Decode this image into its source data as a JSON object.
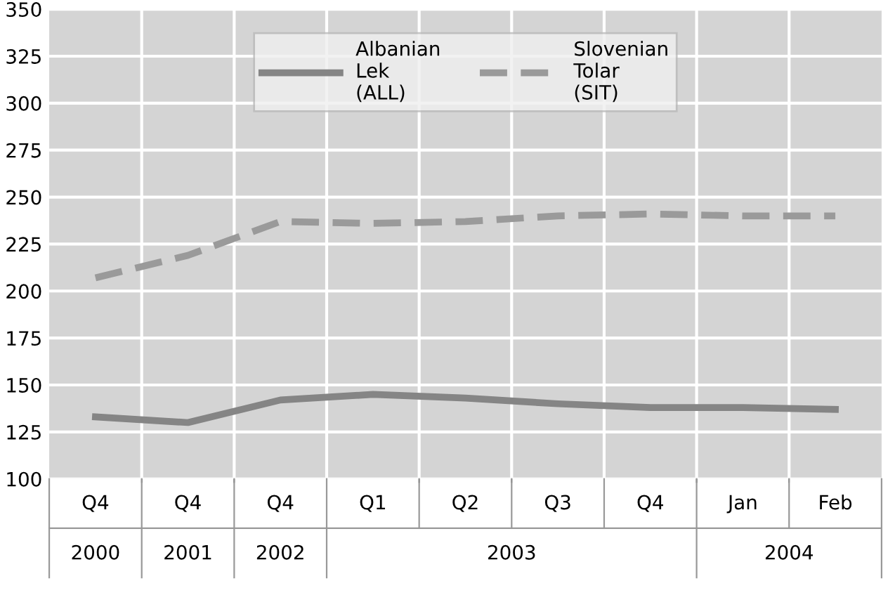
{
  "chart_data": {
    "type": "line",
    "categories": [
      "Q4",
      "Q4",
      "Q4",
      "Q1",
      "Q2",
      "Q3",
      "Q4",
      "Jan",
      "Feb"
    ],
    "series": [
      {
        "name": "Albanian\nLek\n(ALL)",
        "color": "#858585",
        "line_style": "solid",
        "values": [
          133,
          130,
          142,
          145,
          143,
          140,
          138,
          138,
          137
        ]
      },
      {
        "name": "Slovenian\nTolar\n(SIT)",
        "color": "#9a9a9a",
        "line_style": "dashed",
        "values": [
          207,
          219,
          237,
          236,
          237,
          240,
          241,
          240,
          240
        ]
      }
    ],
    "ylim": [
      100,
      350
    ],
    "yticks": [
      100,
      125,
      150,
      175,
      200,
      225,
      250,
      275,
      300,
      325,
      350
    ],
    "grid": true,
    "legend": "top",
    "annotations": [
      "2000",
      "2001",
      "2002",
      "2003",
      "2004"
    ]
  }
}
